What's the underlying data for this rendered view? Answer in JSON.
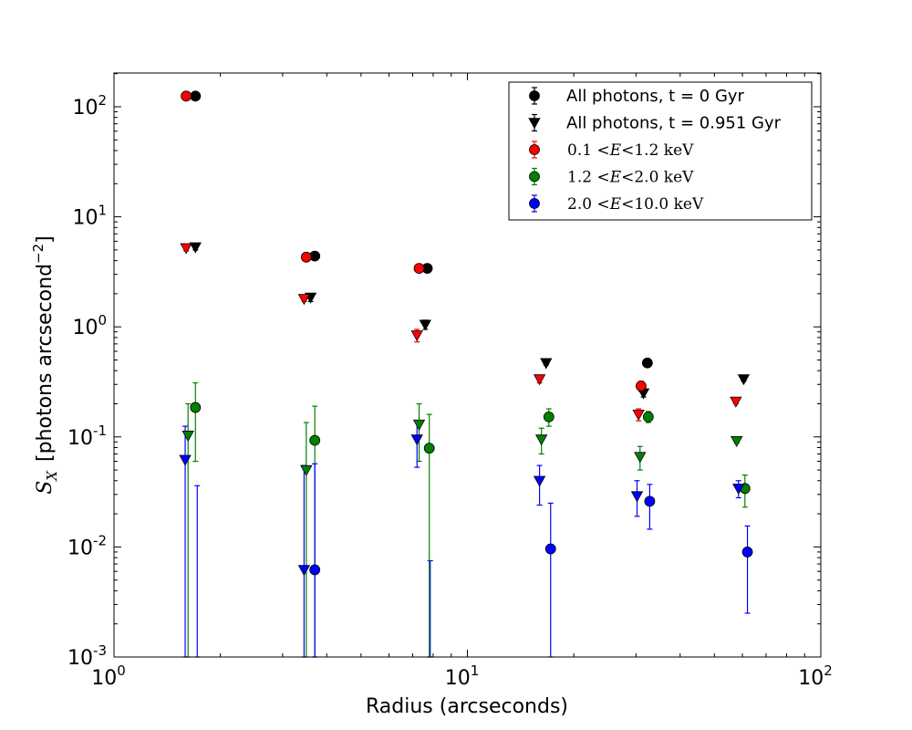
{
  "chart_data": {
    "type": "scatter",
    "title": "",
    "xscale": "log",
    "yscale": "log",
    "xlabel": "Radius (arcseconds)",
    "ylabel_symbol": "S",
    "ylabel_symbol_sub": "X",
    "ylabel_text": "[photons arcsecond",
    "ylabel_exp": "−2",
    "ylabel_close": "]",
    "xlim": [
      1,
      100
    ],
    "ylim": [
      0.001,
      200
    ],
    "x_ticks": [
      {
        "value": 1,
        "base": "10",
        "exp": "0"
      },
      {
        "value": 10,
        "base": "10",
        "exp": "1"
      },
      {
        "value": 100,
        "base": "10",
        "exp": "2"
      }
    ],
    "y_ticks": [
      {
        "value": 0.001,
        "base": "10",
        "exp": "-3"
      },
      {
        "value": 0.01,
        "base": "10",
        "exp": "-2"
      },
      {
        "value": 0.1,
        "base": "10",
        "exp": "-1"
      },
      {
        "value": 1,
        "base": "10",
        "exp": "0"
      },
      {
        "value": 10,
        "base": "10",
        "exp": "1"
      },
      {
        "value": 100,
        "base": "10",
        "exp": "2"
      }
    ],
    "legend_position": "top-right",
    "series": [
      {
        "name": "All photons, t = 0 Gyr",
        "legend_math": false,
        "color": "#000000",
        "marker": "circle",
        "points": [
          {
            "x": 1.7,
            "y": 125,
            "lo": 122,
            "hi": 128
          },
          {
            "x": 3.7,
            "y": 4.4,
            "lo": 4.2,
            "hi": 4.6
          },
          {
            "x": 7.7,
            "y": 3.4,
            "lo": 3.3,
            "hi": 3.5
          },
          {
            "x": 32.3,
            "y": 0.47,
            "lo": 0.44,
            "hi": 0.5
          }
        ]
      },
      {
        "name": "All photons, t = 0.951 Gyr",
        "legend_math": false,
        "color": "#000000",
        "marker": "triangle",
        "points": [
          {
            "x": 1.7,
            "y": 5.3,
            "lo": 5.0,
            "hi": 5.6
          },
          {
            "x": 3.6,
            "y": 1.85,
            "lo": 1.7,
            "hi": 2.0
          },
          {
            "x": 7.6,
            "y": 1.05,
            "lo": 0.95,
            "hi": 1.15
          },
          {
            "x": 16.7,
            "y": 0.47,
            "lo": 0.45,
            "hi": 0.5
          },
          {
            "x": 31.5,
            "y": 0.25,
            "lo": 0.23,
            "hi": 0.28
          },
          {
            "x": 60.5,
            "y": 0.335,
            "lo": 0.32,
            "hi": 0.35
          }
        ]
      },
      {
        "name": "0.1 <E<1.2 keV",
        "legend_math": true,
        "math_lo": "0.1",
        "math_hi": "1.2",
        "color": "#ff0000",
        "marker": "circle",
        "points": [
          {
            "x": 1.6,
            "y": 125,
            "lo": 122,
            "hi": 128
          },
          {
            "x": 3.5,
            "y": 4.3,
            "lo": 4.1,
            "hi": 4.5
          },
          {
            "x": 7.3,
            "y": 3.4,
            "lo": 3.3,
            "hi": 3.5
          },
          {
            "x": 31.0,
            "y": 0.29,
            "lo": 0.26,
            "hi": 0.32
          }
        ]
      },
      {
        "name": "0.1 <E<1.2 keV (t = 0.951 Gyr)",
        "legend_math": false,
        "color": "#ff0000",
        "marker": "triangle",
        "in_legend": false,
        "points": [
          {
            "x": 1.6,
            "y": 5.2,
            "lo": 4.9,
            "hi": 5.5
          },
          {
            "x": 3.45,
            "y": 1.8,
            "lo": 1.7,
            "hi": 1.9
          },
          {
            "x": 7.2,
            "y": 0.84,
            "lo": 0.73,
            "hi": 0.95
          },
          {
            "x": 16.0,
            "y": 0.335,
            "lo": 0.31,
            "hi": 0.36
          },
          {
            "x": 30.5,
            "y": 0.16,
            "lo": 0.14,
            "hi": 0.18
          },
          {
            "x": 57.5,
            "y": 0.21,
            "lo": 0.2,
            "hi": 0.22
          }
        ]
      },
      {
        "name": "1.2 <E<2.0 keV",
        "legend_math": true,
        "math_lo": "1.2",
        "math_hi": "2.0",
        "color": "#008000",
        "marker": "circle",
        "points": [
          {
            "x": 1.7,
            "y": 0.185,
            "lo": 0.06,
            "hi": 0.31
          },
          {
            "x": 3.7,
            "y": 0.093,
            "lo": 0.001,
            "hi": 0.19
          },
          {
            "x": 7.8,
            "y": 0.079,
            "lo": 0.001,
            "hi": 0.16
          },
          {
            "x": 17.0,
            "y": 0.152,
            "lo": 0.125,
            "hi": 0.18
          },
          {
            "x": 32.5,
            "y": 0.152,
            "lo": 0.135,
            "hi": 0.17
          },
          {
            "x": 61.0,
            "y": 0.034,
            "lo": 0.023,
            "hi": 0.045
          }
        ]
      },
      {
        "name": "1.2 <E<2.0 keV (t = 0.951 Gyr)",
        "legend_math": false,
        "color": "#008000",
        "marker": "triangle",
        "in_legend": false,
        "points": [
          {
            "x": 1.62,
            "y": 0.103,
            "lo": 0.001,
            "hi": 0.2
          },
          {
            "x": 3.5,
            "y": 0.05,
            "lo": 0.001,
            "hi": 0.135
          },
          {
            "x": 7.3,
            "y": 0.13,
            "lo": 0.06,
            "hi": 0.2
          },
          {
            "x": 16.2,
            "y": 0.095,
            "lo": 0.07,
            "hi": 0.12
          },
          {
            "x": 30.8,
            "y": 0.066,
            "lo": 0.05,
            "hi": 0.082
          },
          {
            "x": 57.8,
            "y": 0.092,
            "lo": 0.088,
            "hi": 0.097
          }
        ]
      },
      {
        "name": "2.0 <E<10.0 keV",
        "legend_math": true,
        "math_lo": "2.0",
        "math_hi": "10.0",
        "color": "#0000ff",
        "marker": "circle",
        "points": [
          {
            "x": 3.7,
            "y": 0.0062,
            "lo": 0.001,
            "hi": 0.057
          },
          {
            "x": 17.2,
            "y": 0.0096,
            "lo": 0.001,
            "hi": 0.025
          },
          {
            "x": 32.8,
            "y": 0.026,
            "lo": 0.0145,
            "hi": 0.037
          },
          {
            "x": 62.0,
            "y": 0.009,
            "lo": 0.0025,
            "hi": 0.0155
          }
        ]
      },
      {
        "name": "2.0 <E<10.0 keV (t = 0.951 Gyr)",
        "legend_math": false,
        "color": "#0000ff",
        "marker": "triangle",
        "in_legend": false,
        "points": [
          {
            "x": 1.59,
            "y": 0.062,
            "lo": 0.001,
            "hi": 0.125
          },
          {
            "x": 3.45,
            "y": 0.0062,
            "lo": 0.001,
            "hi": 0.055
          },
          {
            "x": 7.2,
            "y": 0.095,
            "lo": 0.053,
            "hi": 0.14
          },
          {
            "x": 16.0,
            "y": 0.04,
            "lo": 0.024,
            "hi": 0.055
          },
          {
            "x": 30.2,
            "y": 0.029,
            "lo": 0.019,
            "hi": 0.04
          },
          {
            "x": 58.5,
            "y": 0.034,
            "lo": 0.028,
            "hi": 0.04
          }
        ]
      }
    ],
    "orphan_errorbars": [
      {
        "x": 1.72,
        "lo": 0.001,
        "hi": 0.036,
        "color": "#0000ff"
      },
      {
        "x": 7.85,
        "lo": 0.001,
        "hi": 0.0075,
        "color": "#0000ff"
      }
    ]
  }
}
